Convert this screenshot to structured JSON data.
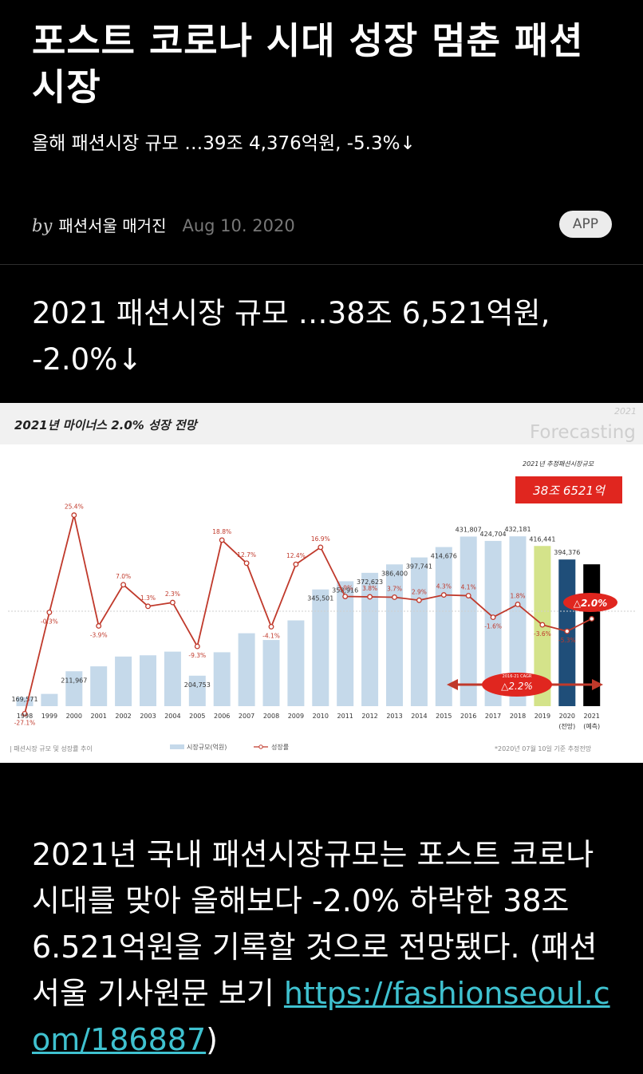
{
  "article": {
    "title": "포스트 코로나 시대 성장 멈춘 패션 시장",
    "subtitle": "올해 패션시장 규모 …39조 4,376억원, -5.3%↓",
    "by_label": "by",
    "author": "패션서울 매거진",
    "date": "Aug 10. 2020",
    "app_label": "APP"
  },
  "section": {
    "title": "2021 패션시장 규모 …38조 6,521억원, -2.0%↓"
  },
  "chart": {
    "header_title": "2021년 마이너스 2.0% 성장 전망",
    "header_sub_small": "2021",
    "header_forecast": "Forecasting",
    "forecast_caption": "2021년 추정패션시장규모",
    "forecast_value": "38조 6521억",
    "cagr_caption": "2016-21 CAGR",
    "cagr_value": "△2.2%",
    "highlight_label": "△2.0%",
    "legend_bar": "시장규모(억원)",
    "legend_line": "성장률",
    "footer_left": "| 패션시장 규모 및 성장률 추이",
    "footer_right": "*2020년 07월 10일 기준 추정전망",
    "colors": {
      "bar": "#c5d9ea",
      "bar_2019": "#d4e38a",
      "bar_2020": "#1f4e79",
      "bar_2021": "#000000",
      "line": "#c0392b"
    }
  },
  "chart_data": {
    "type": "bar",
    "categories": [
      "1998",
      "1999",
      "2000",
      "2001",
      "2002",
      "2003",
      "2004",
      "2005",
      "2006",
      "2007",
      "2008",
      "2009",
      "2010",
      "2011",
      "2012",
      "2013",
      "2014",
      "2015",
      "2016",
      "2017",
      "2018",
      "2019",
      "2020\n(전망)",
      "2021\n(예측)"
    ],
    "series": [
      {
        "name": "시장규모(억원)",
        "values": [
          169571,
          175000,
          211967,
          220000,
          236000,
          238000,
          244000,
          204753,
          243000,
          274000,
          263000,
          295000,
          345501,
          358916,
          372623,
          386400,
          397741,
          414676,
          431807,
          424704,
          432181,
          416441,
          394376,
          386521
        ],
        "labels": [
          "169,571",
          "",
          "211,967",
          "",
          "",
          "",
          "",
          "204,753",
          "",
          "",
          "",
          "",
          "345,501",
          "358,916",
          "372,623",
          "386,400",
          "397,741",
          "414,676",
          "431,807",
          "424,704",
          "432,181",
          "416,441",
          "394,376",
          ""
        ]
      },
      {
        "name": "성장률",
        "values": [
          -27.1,
          -0.3,
          25.4,
          -3.9,
          7.0,
          1.3,
          2.3,
          -9.3,
          18.8,
          12.7,
          -4.1,
          12.4,
          16.9,
          3.9,
          3.8,
          3.7,
          2.9,
          4.3,
          4.1,
          -1.6,
          1.8,
          -3.6,
          -5.3,
          -2.0
        ],
        "labels": [
          "-27.1%",
          "-0.3%",
          "25.4%",
          "-3.9%",
          "7.0%",
          "1.3%",
          "2.3%",
          "-9.3%",
          "18.8%",
          "12.7%",
          "-4.1%",
          "12.4%",
          "16.9%",
          "3.9%",
          "3.8%",
          "3.7%",
          "2.9%",
          "4.3%",
          "4.1%",
          "-1.6%",
          "1.8%",
          "-3.6%",
          "-5.3%",
          ""
        ]
      }
    ]
  },
  "body": {
    "text": "2021년 국내 패션시장규모는 포스트 코로나 시대를 맞아 올해보다 -2.0% 하락한 38조6.521억원을 기록할 것으로 전망됐다. (패션서울 기사원문 보기 ",
    "link": "https://fashionseoul.com/186887",
    "close": ")"
  }
}
